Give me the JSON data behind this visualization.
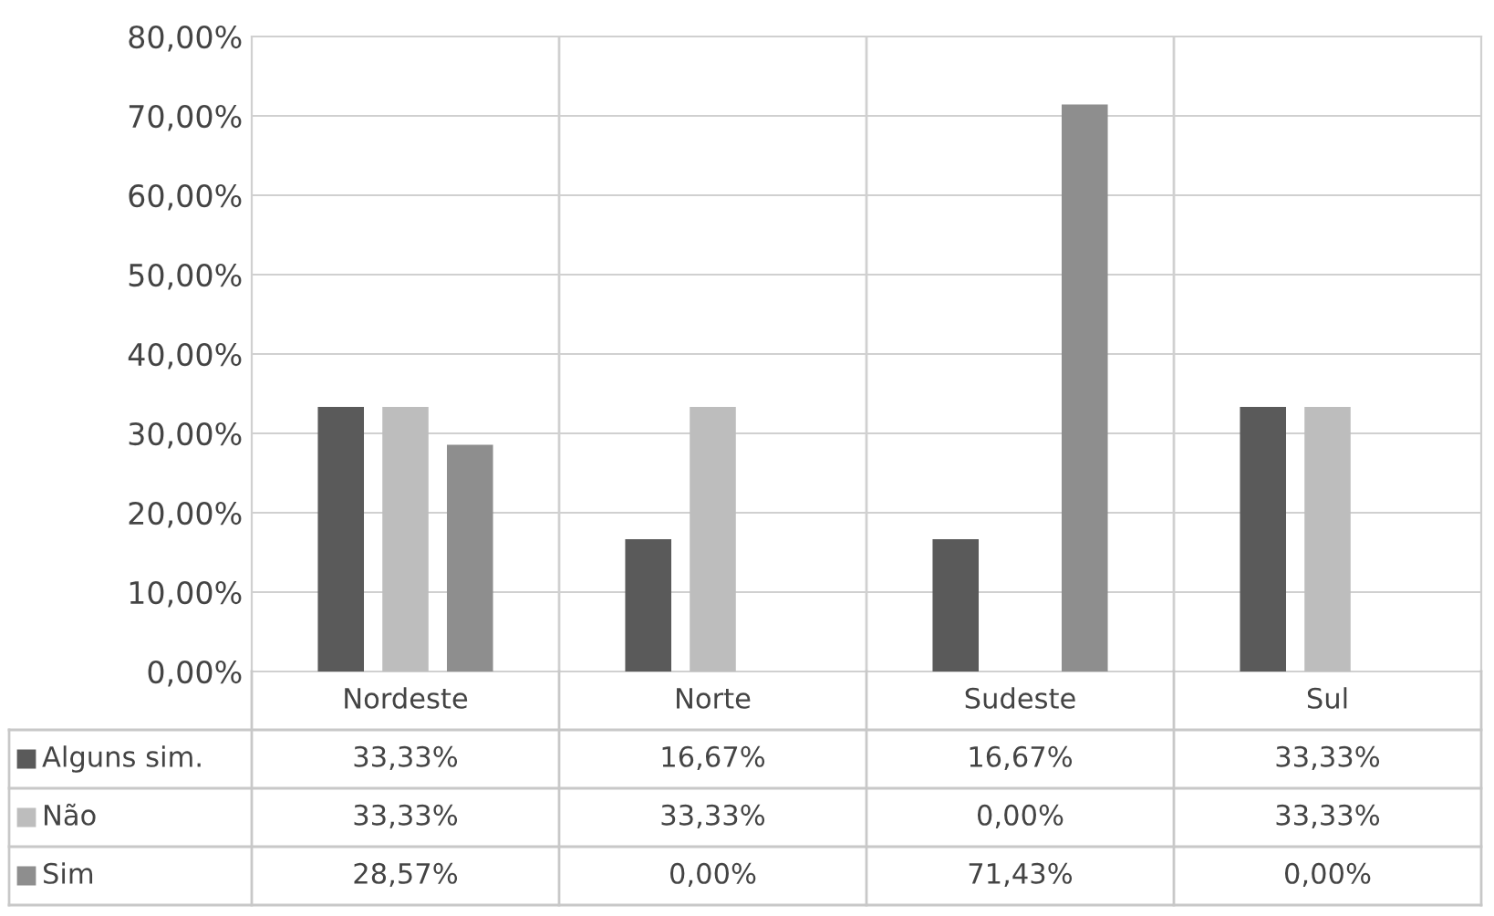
{
  "chart_data": {
    "type": "bar",
    "categories": [
      "Nordeste",
      "Norte",
      "Sudeste",
      "Sul"
    ],
    "series": [
      {
        "name": "Alguns sim.",
        "color": "#5a5a5a",
        "values": [
          33.33,
          16.67,
          16.67,
          33.33
        ],
        "value_labels": [
          "33,33%",
          "16,67%",
          "16,67%",
          "33,33%"
        ]
      },
      {
        "name": "Não",
        "color": "#bdbdbd",
        "values": [
          33.33,
          33.33,
          0.0,
          33.33
        ],
        "value_labels": [
          "33,33%",
          "33,33%",
          "0,00%",
          "33,33%"
        ]
      },
      {
        "name": "Sim",
        "color": "#8e8e8e",
        "values": [
          28.57,
          0.0,
          71.43,
          0.0
        ],
        "value_labels": [
          "28,57%",
          "0,00%",
          "71,43%",
          "0,00%"
        ]
      }
    ],
    "ylim": [
      0,
      80
    ],
    "yticks": [
      {
        "value": 0,
        "label": "0,00%"
      },
      {
        "value": 10,
        "label": "10,00%"
      },
      {
        "value": 20,
        "label": "20,00%"
      },
      {
        "value": 30,
        "label": "30,00%"
      },
      {
        "value": 40,
        "label": "40,00%"
      },
      {
        "value": 50,
        "label": "50,00%"
      },
      {
        "value": 60,
        "label": "60,00%"
      },
      {
        "value": 70,
        "label": "70,00%"
      },
      {
        "value": 80,
        "label": "80,00%"
      }
    ],
    "grid": "y",
    "legend": "bottom left"
  }
}
